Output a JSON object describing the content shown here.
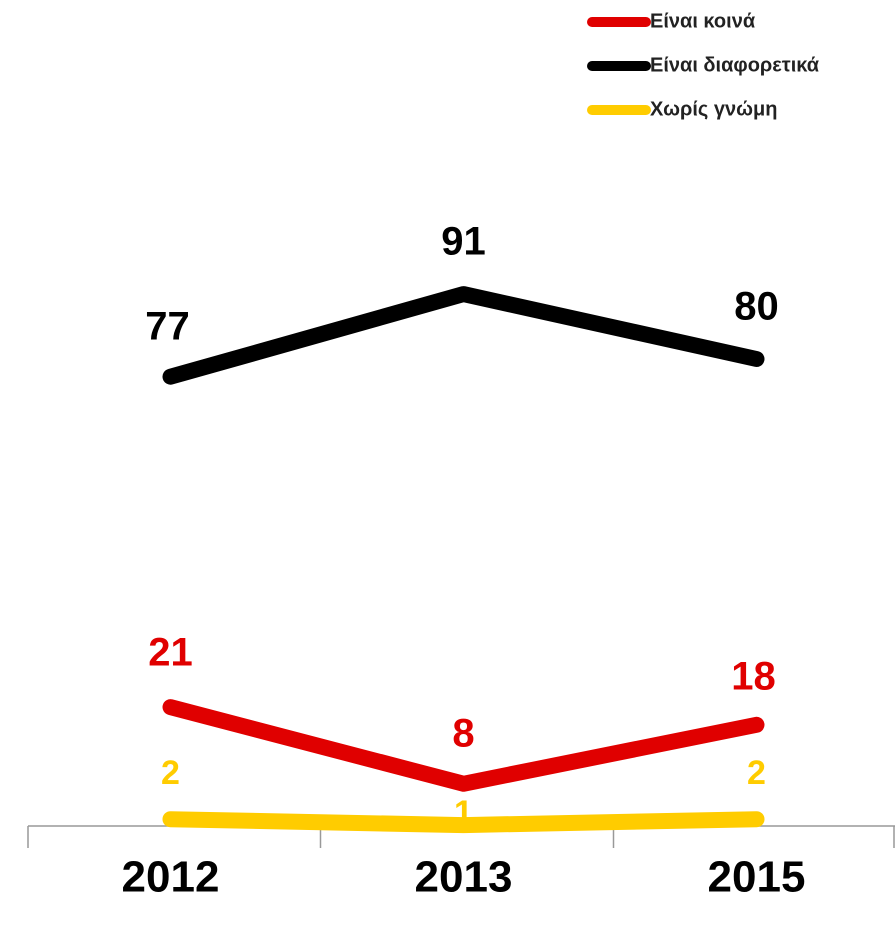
{
  "chart_data": {
    "type": "line",
    "categories": [
      "2012",
      "2013",
      "2015"
    ],
    "series": [
      {
        "name": "Είναι κοινά",
        "color": "#e00000",
        "values": [
          21,
          8,
          18
        ]
      },
      {
        "name": "Είναι διαφορετικά",
        "color": "#000000",
        "values": [
          77,
          91,
          80
        ]
      },
      {
        "name": "Χωρίς γνώμη",
        "color": "#ffcc00",
        "values": [
          2,
          1,
          2
        ]
      }
    ],
    "ylim": [
      0,
      100
    ],
    "legend": "top-right"
  }
}
